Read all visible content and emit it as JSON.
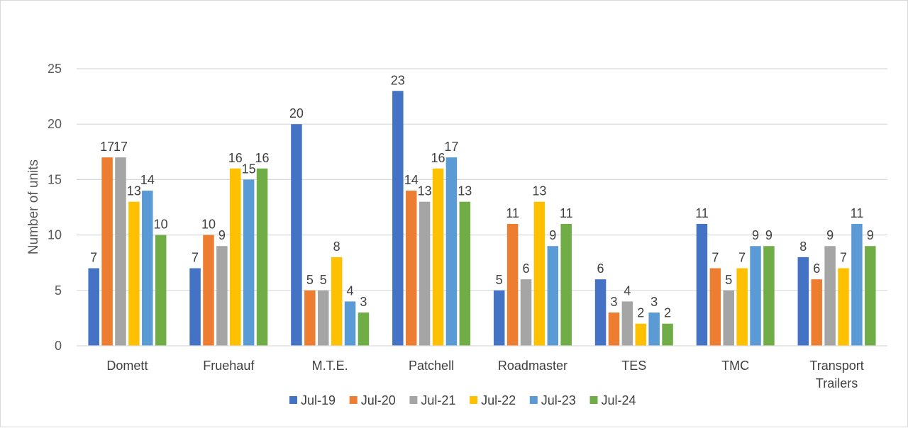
{
  "chart_data": {
    "type": "bar",
    "title": "",
    "xlabel": "",
    "ylabel": "Number of units",
    "ylim": [
      0,
      25
    ],
    "yticks": [
      0,
      5,
      10,
      15,
      20,
      25
    ],
    "grid": true,
    "legend_position": "bottom",
    "categories": [
      [
        "Domett"
      ],
      [
        "Fruehauf"
      ],
      [
        "M.T.E."
      ],
      [
        "Patchell"
      ],
      [
        "Roadmaster"
      ],
      [
        "TES"
      ],
      [
        "TMC"
      ],
      [
        "Transport",
        "Trailers"
      ]
    ],
    "series": [
      {
        "name": "Jul-19",
        "color": "#4472C4",
        "values": [
          7,
          7,
          20,
          23,
          5,
          6,
          11,
          8
        ]
      },
      {
        "name": "Jul-20",
        "color": "#ED7D31",
        "values": [
          17,
          10,
          5,
          14,
          11,
          3,
          7,
          6
        ]
      },
      {
        "name": "Jul-21",
        "color": "#A5A5A5",
        "values": [
          17,
          9,
          5,
          13,
          6,
          4,
          5,
          9
        ]
      },
      {
        "name": "Jul-22",
        "color": "#FFC000",
        "values": [
          13,
          16,
          8,
          16,
          13,
          2,
          7,
          7
        ]
      },
      {
        "name": "Jul-23",
        "color": "#5B9BD5",
        "values": [
          14,
          15,
          4,
          17,
          9,
          3,
          9,
          11
        ]
      },
      {
        "name": "Jul-24",
        "color": "#70AD47",
        "values": [
          10,
          16,
          3,
          13,
          11,
          2,
          9,
          9
        ]
      }
    ]
  }
}
